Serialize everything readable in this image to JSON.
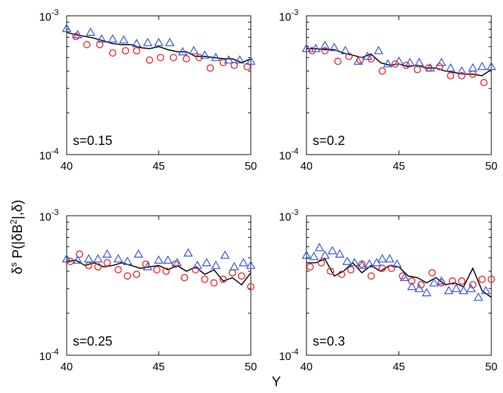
{
  "figure": {
    "xlabel": "Y",
    "ylabel": "δˢ P(|δB²|,δ)",
    "ylabel_parts": {
      "delta": "δ",
      "exp": "s",
      "mid": " P(|δB",
      "sq": "2",
      "tail": "|,δ)"
    },
    "colors": {
      "line": "#000000",
      "circle": "#ee2222",
      "triangle": "#3355dd"
    }
  },
  "chart_data": [
    {
      "type": "line+scatter",
      "label": "s=0.15",
      "xlim": [
        40,
        50
      ],
      "xticks": [
        40,
        45,
        50
      ],
      "yscale": "log",
      "ylim": [
        0.0001,
        0.001
      ],
      "ytick_labels": [
        {
          "base": "10",
          "exp": "-3"
        },
        {
          "base": "10",
          "exp": "-4"
        }
      ],
      "series": [
        {
          "name": "line",
          "x": [
            40,
            40.5,
            41,
            41.5,
            42,
            42.5,
            43,
            43.5,
            44,
            44.5,
            45,
            45.5,
            46,
            46.5,
            47,
            47.5,
            48,
            48.5,
            49,
            49.5,
            50
          ],
          "values": [
            0.00076,
            0.00073,
            0.00071,
            0.00069,
            0.00066,
            0.00063,
            0.00062,
            0.00062,
            0.00059,
            0.00058,
            0.0006,
            0.00057,
            0.00055,
            0.00055,
            0.00051,
            0.00051,
            0.0005,
            0.00049,
            0.00049,
            0.00046,
            0.00049
          ]
        },
        {
          "name": "circles",
          "x": [
            40.5,
            41.1,
            41.8,
            42.5,
            43.2,
            43.8,
            44.5,
            45.1,
            45.8,
            46.5,
            47.2,
            47.8,
            48.5,
            49.1,
            49.8
          ],
          "values": [
            0.00071,
            0.00062,
            0.00062,
            0.00054,
            0.00056,
            0.00056,
            0.00048,
            0.0005,
            0.0005,
            0.00049,
            0.0005,
            0.00042,
            0.00046,
            0.00044,
            0.00043
          ]
        },
        {
          "name": "triangles",
          "x": [
            40,
            40.6,
            41.3,
            41.9,
            42.5,
            43.1,
            43.8,
            44.4,
            45,
            45.6,
            46.3,
            46.9,
            47.5,
            48.1,
            48.8,
            49.4,
            50
          ],
          "values": [
            0.00081,
            0.00073,
            0.00076,
            0.00068,
            0.00068,
            0.00067,
            0.00063,
            0.00064,
            0.00064,
            0.00064,
            0.00055,
            0.00056,
            0.00052,
            0.0005,
            0.00048,
            0.00048,
            0.00047
          ]
        }
      ]
    },
    {
      "type": "line+scatter",
      "label": "s=0.2",
      "xlim": [
        40,
        50
      ],
      "xticks": [
        40,
        45,
        50
      ],
      "yscale": "log",
      "ylim": [
        0.0001,
        0.001
      ],
      "ytick_labels": [
        {
          "base": "10",
          "exp": "-3"
        },
        {
          "base": "10",
          "exp": "-4"
        }
      ],
      "series": [
        {
          "name": "line",
          "x": [
            40,
            40.5,
            41,
            41.5,
            42,
            42.5,
            43,
            43.5,
            44,
            44.5,
            45,
            45.5,
            46,
            46.5,
            47,
            47.5,
            48,
            48.5,
            49,
            49.5,
            50
          ],
          "values": [
            0.00058,
            0.00058,
            0.00057,
            0.00057,
            0.00054,
            0.00052,
            0.0005,
            0.00053,
            0.00046,
            0.00044,
            0.00045,
            0.00043,
            0.00044,
            0.00042,
            0.00042,
            0.0004,
            0.00039,
            0.00038,
            0.00038,
            0.00037,
            0.00041
          ]
        },
        {
          "name": "circles",
          "x": [
            40.3,
            41,
            41.7,
            42.3,
            42.9,
            43.5,
            44.1,
            44.8,
            45.4,
            46,
            46.6,
            47.2,
            47.8,
            48.4,
            49,
            49.6
          ],
          "values": [
            0.00056,
            0.00056,
            0.00047,
            0.00051,
            0.00048,
            0.00049,
            0.0004,
            0.00045,
            0.00044,
            0.00041,
            0.00042,
            0.00043,
            0.00037,
            0.00037,
            0.00038,
            0.00033
          ]
        },
        {
          "name": "triangles",
          "x": [
            40,
            40.5,
            41,
            41.5,
            42.1,
            42.8,
            43.3,
            43.9,
            44.4,
            45,
            45.6,
            46.1,
            46.7,
            47.3,
            47.8,
            48.4,
            49,
            49.5,
            50
          ],
          "values": [
            0.00058,
            0.00058,
            0.00061,
            0.00059,
            0.00056,
            0.00047,
            0.00051,
            0.00056,
            0.00045,
            0.00047,
            0.00046,
            0.00046,
            0.00042,
            0.00046,
            0.00042,
            0.0004,
            0.00042,
            0.00043,
            0.00043
          ]
        }
      ]
    },
    {
      "type": "line+scatter",
      "label": "s=0.25",
      "xlim": [
        40,
        50
      ],
      "xticks": [
        40,
        45,
        50
      ],
      "yscale": "log",
      "ylim": [
        0.0001,
        0.001
      ],
      "ytick_labels": [
        {
          "base": "10",
          "exp": "-3"
        },
        {
          "base": "10",
          "exp": "-4"
        }
      ],
      "series": [
        {
          "name": "line",
          "x": [
            40,
            40.5,
            41,
            41.5,
            42,
            42.5,
            43,
            43.5,
            44,
            44.5,
            45,
            45.5,
            46,
            46.5,
            47,
            47.5,
            48,
            48.5,
            49,
            49.5,
            50
          ],
          "values": [
            0.00047,
            0.00048,
            0.00044,
            0.00046,
            0.00043,
            0.00044,
            0.00046,
            0.00044,
            0.00042,
            0.00043,
            0.00044,
            0.00041,
            0.00044,
            0.0004,
            0.00043,
            0.00038,
            0.00041,
            0.00034,
            0.00036,
            0.00032,
            0.00039
          ]
        },
        {
          "name": "circles",
          "x": [
            40.2,
            40.7,
            41.2,
            41.7,
            42.2,
            42.8,
            43.3,
            43.8,
            44.3,
            44.9,
            45.4,
            45.9,
            46.4,
            47,
            47.5,
            48,
            48.5,
            49,
            49.5,
            50
          ],
          "values": [
            0.00047,
            0.00053,
            0.00044,
            0.00043,
            0.00046,
            0.00041,
            0.00037,
            0.00038,
            0.00045,
            0.00041,
            0.0004,
            0.00045,
            0.00036,
            0.00041,
            0.00035,
            0.00033,
            0.00035,
            0.00039,
            0.00037,
            0.00031
          ]
        },
        {
          "name": "triangles",
          "x": [
            40,
            40.6,
            41.2,
            41.7,
            42.2,
            42.8,
            43.3,
            43.9,
            44.4,
            45,
            45.5,
            46,
            46.6,
            47.1,
            47.6,
            48.1,
            48.6,
            49.1,
            49.6,
            50
          ],
          "values": [
            0.00049,
            0.00048,
            0.00049,
            0.00049,
            0.00053,
            0.00049,
            0.00047,
            0.00053,
            0.00043,
            0.00048,
            0.00048,
            0.00046,
            0.00054,
            0.00044,
            0.00046,
            0.00044,
            0.00052,
            0.00043,
            0.00046,
            0.00044
          ]
        }
      ]
    },
    {
      "type": "line+scatter",
      "label": "s=0.3",
      "xlim": [
        40,
        50
      ],
      "xticks": [
        40,
        45,
        50
      ],
      "yscale": "log",
      "ylim": [
        0.0001,
        0.001
      ],
      "ytick_labels": [
        {
          "base": "10",
          "exp": "-3"
        },
        {
          "base": "10",
          "exp": "-4"
        }
      ],
      "series": [
        {
          "name": "line",
          "x": [
            40,
            40.5,
            41,
            41.5,
            42,
            42.5,
            43,
            43.5,
            44,
            44.5,
            45,
            45.5,
            46,
            46.5,
            47,
            47.5,
            48,
            48.5,
            49,
            49.5,
            50
          ],
          "values": [
            0.00046,
            0.00046,
            0.00049,
            0.00037,
            0.0004,
            0.00046,
            0.00039,
            0.00044,
            0.0004,
            0.00044,
            0.00043,
            0.00037,
            0.00036,
            0.00033,
            0.00036,
            0.00032,
            0.00033,
            0.00031,
            0.00042,
            0.00029,
            0.00026
          ]
        },
        {
          "name": "circles",
          "x": [
            40.2,
            40.8,
            41.3,
            41.9,
            42.4,
            43,
            43.5,
            44.1,
            44.6,
            45.2,
            45.7,
            46.2,
            46.8,
            47.3,
            47.9,
            48.4,
            49,
            49.5,
            50
          ],
          "values": [
            0.00043,
            0.00046,
            0.0004,
            0.00038,
            0.00041,
            0.00045,
            0.00037,
            0.00042,
            0.00042,
            0.00037,
            0.00034,
            0.00032,
            0.00039,
            0.00033,
            0.00034,
            0.00034,
            0.00032,
            0.00035,
            0.00035
          ]
        },
        {
          "name": "triangles",
          "x": [
            40,
            40.4,
            40.7,
            41,
            41.4,
            41.8,
            42.2,
            42.6,
            43,
            43.4,
            43.8,
            44.1,
            44.5,
            44.9,
            45.3,
            45.7,
            46.1,
            46.5,
            46.9,
            47.3,
            47.7,
            48.1,
            48.5,
            48.9,
            49.3,
            49.7
          ],
          "values": [
            0.00052,
            0.00051,
            0.00059,
            0.00052,
            0.00056,
            0.00053,
            0.00047,
            0.00046,
            0.00044,
            0.00045,
            0.00046,
            0.00049,
            0.00049,
            0.00045,
            0.00036,
            0.00031,
            0.0003,
            0.00028,
            0.00033,
            0.00034,
            0.00029,
            0.0003,
            0.00029,
            0.0003,
            0.00026,
            0.00029
          ]
        }
      ]
    }
  ]
}
